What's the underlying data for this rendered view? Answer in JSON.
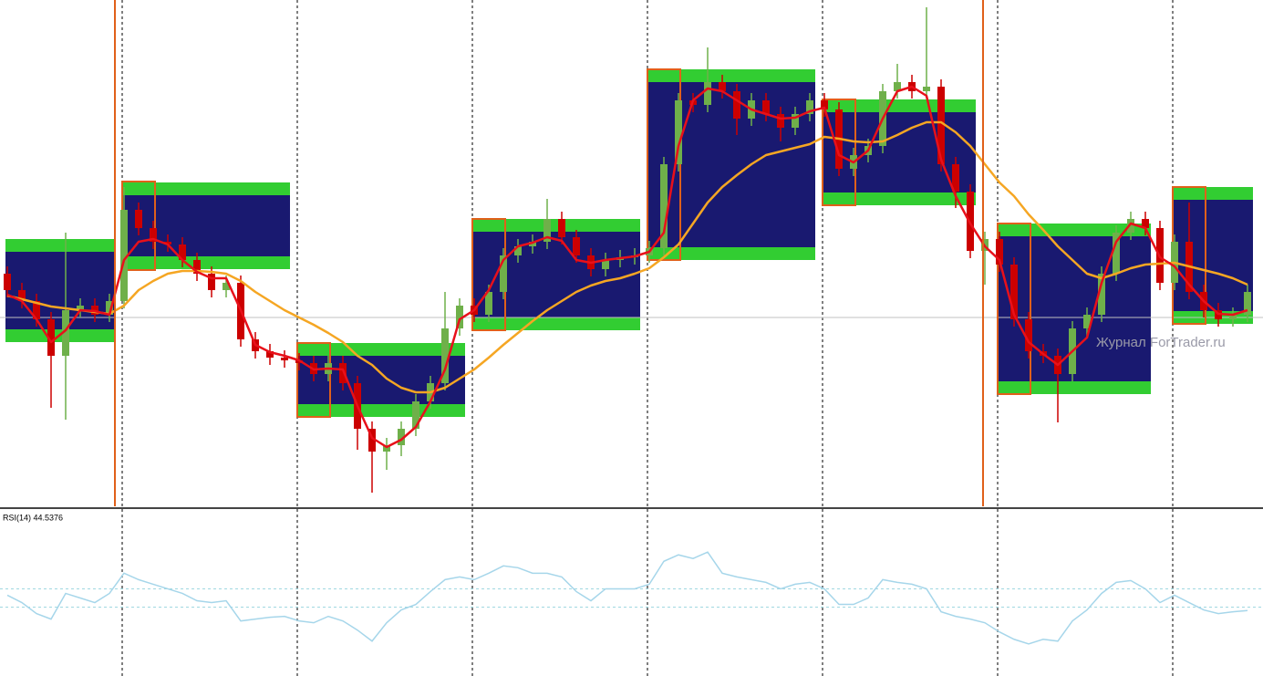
{
  "chart_data": [
    {
      "type": "candlestick",
      "open": [
        255,
        237,
        225,
        205,
        165,
        215,
        220,
        210,
        225,
        325,
        305,
        290,
        287,
        270,
        255,
        237,
        245,
        183,
        170,
        163,
        160,
        157,
        145,
        157,
        135,
        85,
        60,
        67,
        85,
        115,
        135,
        195,
        220,
        210,
        235,
        275,
        285,
        290,
        315,
        295,
        275,
        260,
        270,
        273,
        275,
        283,
        375,
        445,
        440,
        465,
        455,
        425,
        445,
        430,
        415,
        430,
        445,
        435,
        370,
        385,
        395,
        455,
        465,
        455,
        460,
        375,
        345,
        280,
        293,
        265,
        205,
        170,
        165,
        145,
        195,
        210,
        255,
        300,
        315,
        305,
        245,
        290,
        235,
        215,
        205,
        210
      ],
      "high": [
        263,
        245,
        233,
        213,
        300,
        228,
        228,
        233,
        350,
        333,
        313,
        298,
        295,
        278,
        263,
        253,
        253,
        191,
        178,
        171,
        168,
        165,
        165,
        165,
        143,
        93,
        75,
        93,
        123,
        143,
        235,
        228,
        228,
        243,
        283,
        293,
        298,
        337,
        323,
        303,
        283,
        278,
        281,
        283,
        291,
        383,
        453,
        453,
        503,
        473,
        463,
        453,
        453,
        438,
        438,
        453,
        453,
        443,
        393,
        403,
        463,
        485,
        473,
        547,
        468,
        383,
        353,
        301,
        301,
        273,
        213,
        178,
        173,
        203,
        218,
        263,
        308,
        323,
        323,
        313,
        298,
        333,
        243,
        223,
        218,
        243
      ],
      "low": [
        229,
        217,
        197,
        108,
        95,
        207,
        202,
        202,
        217,
        297,
        282,
        279,
        262,
        247,
        229,
        229,
        175,
        162,
        155,
        152,
        149,
        137,
        137,
        127,
        62,
        15,
        40,
        55,
        77,
        107,
        127,
        187,
        202,
        202,
        227,
        267,
        277,
        282,
        287,
        267,
        252,
        252,
        262,
        265,
        267,
        275,
        367,
        432,
        432,
        447,
        407,
        417,
        422,
        400,
        407,
        422,
        427,
        362,
        362,
        377,
        387,
        447,
        447,
        447,
        367,
        327,
        272,
        243,
        257,
        197,
        162,
        157,
        92,
        137,
        187,
        202,
        247,
        292,
        297,
        237,
        237,
        227,
        207,
        197,
        197,
        202
      ],
      "close": [
        237,
        225,
        205,
        165,
        215,
        220,
        210,
        225,
        325,
        305,
        290,
        287,
        270,
        255,
        237,
        245,
        183,
        170,
        163,
        160,
        157,
        145,
        157,
        135,
        85,
        60,
        67,
        85,
        115,
        135,
        195,
        220,
        210,
        235,
        275,
        285,
        290,
        315,
        295,
        275,
        260,
        270,
        273,
        275,
        283,
        375,
        445,
        440,
        465,
        455,
        425,
        445,
        430,
        415,
        430,
        445,
        435,
        370,
        385,
        395,
        455,
        465,
        455,
        460,
        375,
        345,
        280,
        293,
        265,
        205,
        170,
        165,
        145,
        195,
        210,
        255,
        300,
        315,
        305,
        245,
        290,
        235,
        215,
        205,
        210,
        235
      ],
      "up_color": "#6fb04a",
      "down_color": "#cc0000",
      "ylim": [
        0,
        555
      ],
      "price_line": 207,
      "series": [
        {
          "color": "#f5a623",
          "values": [
            231,
            227,
            223,
            219,
            217,
            215,
            213,
            211,
            220,
            237,
            247,
            255,
            258,
            258,
            257,
            255,
            247,
            235,
            225,
            215,
            207,
            199,
            190,
            180,
            165,
            155,
            140,
            130,
            125,
            125,
            130,
            140,
            150,
            163,
            177,
            190,
            203,
            215,
            225,
            235,
            242,
            247,
            250,
            255,
            261,
            273,
            287,
            310,
            333,
            350,
            363,
            375,
            385,
            389,
            393,
            397,
            405,
            403,
            400,
            399,
            400,
            407,
            415,
            421,
            421,
            410,
            395,
            375,
            355,
            340,
            320,
            303,
            285,
            270,
            255,
            250,
            255,
            261,
            265,
            266,
            267,
            263,
            259,
            255,
            250,
            243
          ]
        },
        {
          "color": "#e8101a",
          "values": [
            232,
            225,
            205,
            180,
            193,
            215,
            214,
            210,
            270,
            290,
            293,
            287,
            270,
            257,
            250,
            250,
            215,
            177,
            169,
            165,
            160,
            150,
            151,
            150,
            110,
            75,
            65,
            73,
            87,
            115,
            150,
            205,
            215,
            237,
            270,
            285,
            289,
            295,
            291,
            270,
            267,
            270,
            272,
            274,
            279,
            300,
            395,
            445,
            458,
            455,
            445,
            435,
            430,
            425,
            426,
            433,
            437,
            385,
            377,
            390,
            425,
            455,
            460,
            450,
            380,
            340,
            310,
            285,
            270,
            210,
            180,
            167,
            155,
            170,
            185,
            245,
            290,
            310,
            305,
            273,
            263,
            243,
            225,
            211,
            210,
            215
          ]
        }
      ],
      "ranges": [
        {
          "start": 0,
          "end": 7,
          "high": 293,
          "low": 180
        },
        {
          "start": 8,
          "end": 19,
          "high": 355,
          "low": 260
        },
        {
          "start": 20,
          "end": 31,
          "high": 179,
          "low": 98
        },
        {
          "start": 32,
          "end": 43,
          "high": 315,
          "low": 193
        },
        {
          "start": 44,
          "end": 55,
          "high": 479,
          "low": 270
        },
        {
          "start": 56,
          "end": 66,
          "high": 446,
          "low": 330
        },
        {
          "start": 68,
          "end": 78,
          "high": 310,
          "low": 123
        },
        {
          "start": 80,
          "end": 85,
          "high": 350,
          "low": 200
        }
      ],
      "range_color": "#32cd32",
      "range_fill": "#191970",
      "opening_ranges": [
        {
          "start": 8,
          "end": 10,
          "high": 356,
          "low": 259
        },
        {
          "start": 20,
          "end": 22,
          "high": 179,
          "low": 98
        },
        {
          "start": 32,
          "end": 34,
          "high": 315,
          "low": 193
        },
        {
          "start": 44,
          "end": 46,
          "high": 479,
          "low": 270
        },
        {
          "start": 56,
          "end": 58,
          "high": 446,
          "low": 330
        },
        {
          "start": 68,
          "end": 70,
          "high": 310,
          "low": 123
        },
        {
          "start": 80,
          "end": 82,
          "high": 350,
          "low": 200
        }
      ],
      "opening_color": "#e0601a",
      "watermark": "Журнал ForTrader.ru"
    },
    {
      "type": "line",
      "title": "RSI(14) 44.5376",
      "color": "#a6d6ea",
      "values": [
        51.2,
        48,
        43.2,
        40.8,
        52,
        50,
        48,
        52,
        60.8,
        58,
        56,
        54,
        52,
        48.8,
        48,
        48.8,
        40,
        40.8,
        41.6,
        42,
        40,
        39.2,
        42,
        40,
        36,
        31.2,
        39.2,
        44.8,
        47.2,
        52.8,
        58,
        59.2,
        58,
        60.8,
        64,
        63.2,
        60.8,
        60.8,
        59.2,
        52.8,
        48.8,
        54,
        54,
        54,
        56,
        66,
        68.8,
        67.2,
        70,
        60.8,
        59.2,
        58,
        56.8,
        54,
        56,
        56.8,
        54,
        47.2,
        47.2,
        50,
        58,
        56.8,
        56,
        54,
        44,
        42,
        40.8,
        39.2,
        35.2,
        32,
        30,
        32,
        31.2,
        40,
        44.8,
        52,
        56.8,
        57.6,
        54,
        48,
        51.2,
        48,
        44.8,
        43.2,
        44,
        44.5376
      ],
      "ylim": [
        16,
        84
      ],
      "levels": [
        54,
        46
      ]
    }
  ]
}
